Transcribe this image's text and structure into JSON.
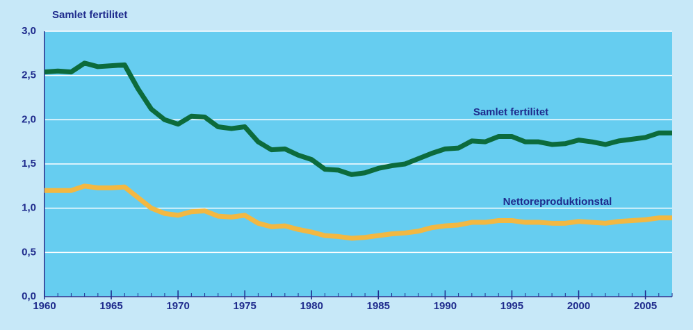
{
  "chart_data": {
    "type": "line",
    "title": "Samlet fertilitet",
    "x": [
      1960,
      1961,
      1962,
      1963,
      1964,
      1965,
      1966,
      1967,
      1968,
      1969,
      1970,
      1971,
      1972,
      1973,
      1974,
      1975,
      1976,
      1977,
      1978,
      1979,
      1980,
      1981,
      1982,
      1983,
      1984,
      1985,
      1986,
      1987,
      1988,
      1989,
      1990,
      1991,
      1992,
      1993,
      1994,
      1995,
      1996,
      1997,
      1998,
      1999,
      2000,
      2001,
      2002,
      2003,
      2004,
      2005,
      2006,
      2007
    ],
    "series": [
      {
        "name": "Samlet fertilitet",
        "color": "#0c6b3c",
        "values": [
          2.54,
          2.55,
          2.54,
          2.64,
          2.6,
          2.61,
          2.62,
          2.35,
          2.12,
          2.0,
          1.95,
          2.04,
          2.03,
          1.92,
          1.9,
          1.92,
          1.75,
          1.66,
          1.67,
          1.6,
          1.55,
          1.44,
          1.43,
          1.38,
          1.4,
          1.45,
          1.48,
          1.5,
          1.56,
          1.62,
          1.67,
          1.68,
          1.76,
          1.75,
          1.81,
          1.81,
          1.75,
          1.75,
          1.72,
          1.73,
          1.77,
          1.75,
          1.72,
          1.76,
          1.78,
          1.8,
          1.85,
          1.85
        ]
      },
      {
        "name": "Nettoreproduktionstal",
        "color": "#f2b842",
        "values": [
          1.2,
          1.2,
          1.2,
          1.25,
          1.23,
          1.23,
          1.24,
          1.12,
          1.0,
          0.94,
          0.92,
          0.96,
          0.97,
          0.91,
          0.9,
          0.92,
          0.83,
          0.79,
          0.8,
          0.76,
          0.73,
          0.69,
          0.68,
          0.66,
          0.67,
          0.69,
          0.71,
          0.72,
          0.74,
          0.78,
          0.8,
          0.81,
          0.84,
          0.84,
          0.86,
          0.86,
          0.84,
          0.84,
          0.83,
          0.83,
          0.85,
          0.84,
          0.83,
          0.85,
          0.86,
          0.87,
          0.89,
          0.89
        ]
      }
    ],
    "xlim": [
      1960,
      2007
    ],
    "xticks": [
      1960,
      1965,
      1970,
      1975,
      1980,
      1985,
      1990,
      1995,
      2000,
      2005
    ],
    "ylim": [
      0,
      3
    ],
    "yticks": [
      {
        "value": 0,
        "label": "0,0"
      },
      {
        "value": 0.5,
        "label": "0,5"
      },
      {
        "value": 1,
        "label": "1,0"
      },
      {
        "value": 1.5,
        "label": "1,5"
      },
      {
        "value": 2,
        "label": "2,0"
      },
      {
        "value": 2.5,
        "label": "2,5"
      },
      {
        "value": 3,
        "label": "3,0"
      }
    ],
    "grid": true
  }
}
